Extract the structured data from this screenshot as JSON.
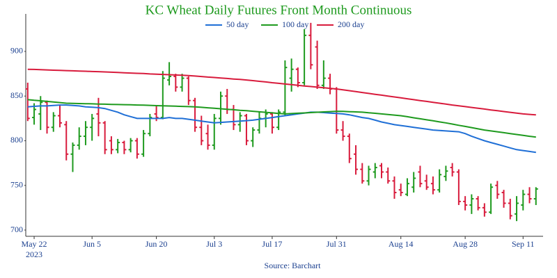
{
  "chart_data": {
    "type": "ohlc",
    "title": "KC Wheat Daily Futures Front Month Continuous",
    "source": "Source: Barchart",
    "x_year_label": "2023",
    "categories": [
      null,
      "May 22",
      null,
      null,
      null,
      null,
      null,
      null,
      null,
      null,
      "Jun 5",
      null,
      null,
      null,
      null,
      null,
      null,
      null,
      null,
      null,
      "Jun 20",
      null,
      null,
      null,
      null,
      null,
      null,
      null,
      null,
      "Jul 3",
      null,
      null,
      null,
      null,
      null,
      null,
      null,
      null,
      "Jul 17",
      null,
      null,
      null,
      null,
      null,
      null,
      null,
      null,
      null,
      "Jul 31",
      null,
      null,
      null,
      null,
      null,
      null,
      null,
      null,
      null,
      "Aug 14",
      null,
      null,
      null,
      null,
      null,
      null,
      null,
      null,
      null,
      "Aug 28",
      null,
      null,
      null,
      null,
      null,
      null,
      null,
      null,
      "Sep 11",
      null,
      null
    ],
    "open": [
      858,
      826,
      830,
      843,
      815,
      828,
      818,
      785,
      795,
      805,
      815,
      830,
      820,
      800,
      790,
      798,
      790,
      800,
      785,
      808,
      830,
      826,
      868,
      872,
      860,
      870,
      845,
      815,
      808,
      795,
      825,
      850,
      835,
      818,
      828,
      800,
      812,
      825,
      830,
      815,
      832,
      870,
      880,
      865,
      918,
      905,
      862,
      870,
      858,
      812,
      805,
      785,
      768,
      755,
      765,
      772,
      765,
      755,
      745,
      740,
      748,
      765,
      755,
      752,
      745,
      760,
      770,
      765,
      732,
      728,
      735,
      725,
      720,
      750,
      742,
      730,
      718,
      728,
      740,
      735
    ],
    "high": [
      865,
      842,
      850,
      845,
      832,
      840,
      822,
      798,
      815,
      822,
      830,
      848,
      822,
      805,
      802,
      800,
      803,
      803,
      812,
      830,
      840,
      878,
      888,
      875,
      875,
      872,
      848,
      828,
      818,
      830,
      855,
      858,
      840,
      832,
      830,
      815,
      832,
      835,
      832,
      835,
      890,
      892,
      882,
      925,
      932,
      912,
      890,
      875,
      860,
      822,
      808,
      795,
      775,
      772,
      775,
      775,
      770,
      760,
      752,
      758,
      765,
      772,
      762,
      760,
      768,
      772,
      775,
      768,
      738,
      740,
      738,
      730,
      752,
      755,
      745,
      735,
      738,
      745,
      748,
      748
    ],
    "low": [
      822,
      818,
      812,
      808,
      810,
      815,
      778,
      765,
      790,
      795,
      800,
      805,
      785,
      785,
      786,
      785,
      787,
      780,
      782,
      805,
      822,
      824,
      862,
      855,
      855,
      840,
      810,
      795,
      790,
      790,
      818,
      830,
      812,
      810,
      795,
      793,
      808,
      815,
      808,
      812,
      828,
      855,
      860,
      862,
      880,
      858,
      858,
      852,
      808,
      800,
      775,
      762,
      752,
      750,
      758,
      758,
      752,
      735,
      738,
      738,
      742,
      748,
      745,
      740,
      742,
      755,
      760,
      728,
      722,
      718,
      722,
      715,
      718,
      735,
      725,
      712,
      710,
      722,
      730,
      728
    ],
    "close": [
      825,
      835,
      843,
      815,
      828,
      820,
      785,
      795,
      805,
      815,
      825,
      820,
      790,
      790,
      798,
      790,
      800,
      785,
      808,
      826,
      826,
      870,
      872,
      860,
      870,
      845,
      815,
      800,
      795,
      825,
      850,
      835,
      818,
      828,
      800,
      812,
      825,
      830,
      815,
      832,
      882,
      880,
      865,
      918,
      885,
      862,
      870,
      858,
      812,
      805,
      780,
      768,
      755,
      768,
      770,
      765,
      755,
      742,
      742,
      752,
      758,
      752,
      748,
      745,
      762,
      766,
      765,
      732,
      728,
      735,
      725,
      720,
      748,
      740,
      730,
      716,
      730,
      740,
      735,
      746
    ],
    "up_color": "#1e9a1e",
    "down_color": "#d81b3c",
    "series": [
      {
        "name": "50 day",
        "color": "#1f6fd6",
        "values": [
          838,
          838.5,
          839,
          839,
          839.5,
          840,
          840,
          839.5,
          839,
          838,
          837.5,
          837,
          836,
          834,
          832,
          829,
          827,
          825,
          825,
          825,
          825,
          825,
          826,
          825,
          825,
          824,
          823,
          822,
          821,
          820,
          820.5,
          821,
          821.5,
          822,
          822.5,
          823,
          824,
          825,
          826,
          827,
          828,
          829,
          830,
          831,
          832,
          832,
          831.5,
          831,
          830.5,
          830,
          829,
          827.5,
          826,
          825,
          823,
          821,
          819.5,
          818,
          817,
          816,
          815,
          814,
          813,
          812,
          811.5,
          811,
          810.5,
          810,
          808,
          805,
          802.5,
          800,
          798,
          796,
          794,
          792,
          790,
          789,
          788,
          787
        ]
      },
      {
        "name": "100 day",
        "color": "#1e9a1e",
        "values": [
          846,
          845.3,
          844.7,
          844,
          843.3,
          842.7,
          842,
          841.8,
          841.6,
          841.5,
          841.3,
          841.1,
          840.9,
          840.7,
          840.5,
          840.4,
          840.2,
          840,
          839.8,
          839.6,
          839.3,
          839.1,
          838.9,
          838.7,
          838.4,
          838.2,
          838,
          837.4,
          836.9,
          836.3,
          835.8,
          835.2,
          834.7,
          834.1,
          833.6,
          833,
          832.4,
          831.8,
          831.2,
          830.6,
          830,
          830.4,
          830.8,
          831.1,
          831.5,
          831.9,
          832.3,
          832.6,
          833,
          832.8,
          832.5,
          832.3,
          832,
          831.3,
          830.7,
          830,
          829.3,
          828.7,
          828,
          826.9,
          825.7,
          824.6,
          823.4,
          822.3,
          821.1,
          820,
          818.7,
          817.3,
          816,
          814.7,
          813.3,
          812,
          811,
          810,
          809,
          808,
          807,
          806,
          805,
          804
        ]
      },
      {
        "name": "200 day",
        "color": "#d81b3c",
        "values": [
          880,
          879.8,
          879.5,
          879.3,
          879,
          878.8,
          878.5,
          878.3,
          878,
          877.8,
          877.5,
          877.3,
          877,
          876.7,
          876.4,
          876.1,
          875.8,
          875.5,
          875.2,
          874.8,
          874.5,
          874.2,
          873.9,
          873.6,
          873.3,
          873,
          872.4,
          871.9,
          871.3,
          870.8,
          870.2,
          869.7,
          869.1,
          868.6,
          868,
          867.3,
          866.5,
          865.8,
          865,
          864.3,
          863.5,
          862.8,
          862,
          861.3,
          860.7,
          860,
          859.3,
          858.7,
          858,
          857,
          856,
          855,
          854,
          853,
          852,
          851,
          850,
          849,
          848,
          847,
          846,
          845,
          844,
          843,
          842,
          841,
          840,
          839.1,
          838.2,
          837.3,
          836.4,
          835.5,
          834.5,
          833.6,
          832.7,
          831.8,
          830.9,
          830,
          829.5,
          829
        ]
      }
    ],
    "ylim": [
      693,
      942
    ],
    "yticks": [
      700,
      750,
      800,
      850,
      900
    ],
    "grid": false
  }
}
